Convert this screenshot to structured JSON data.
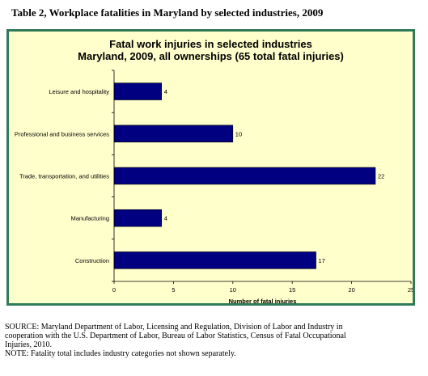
{
  "page_title": "Table 2, Workplace fatalities in Maryland by selected industries, 2009",
  "chart_data": {
    "type": "bar",
    "orientation": "horizontal",
    "title_line1": "Fatal work injuries in selected industries",
    "title_line2": "Maryland, 2009, all ownerships (65 total fatal injuries)",
    "categories": [
      "Leisure and hospitality",
      "Professional and business services",
      "Trade, transportation, and utilities",
      "Manufacturing",
      "Construction"
    ],
    "values": [
      4,
      10,
      22,
      4,
      17
    ],
    "data_labels": [
      "4",
      "10",
      "22",
      "4",
      "17"
    ],
    "xlabel": "Number of fatal injuries",
    "xlim": [
      0,
      25
    ],
    "xticks": [
      "0",
      "5",
      "10",
      "15",
      "20",
      "25"
    ],
    "grid": false,
    "bar_color": "#000080",
    "plot_background": "#ffffcc",
    "border_color": "#2f7a5a"
  },
  "footer": {
    "source_line1": "SOURCE: Maryland Department of Labor, Licensing and Regulation, Division of Labor and Industry in",
    "source_line2": "cooperation with the U.S. Department of Labor, Bureau of Labor Statistics, Census of Fatal Occupational",
    "source_line3": "Injuries, 2010.",
    "note": "NOTE: Fatality total includes industry categories not shown separately."
  }
}
